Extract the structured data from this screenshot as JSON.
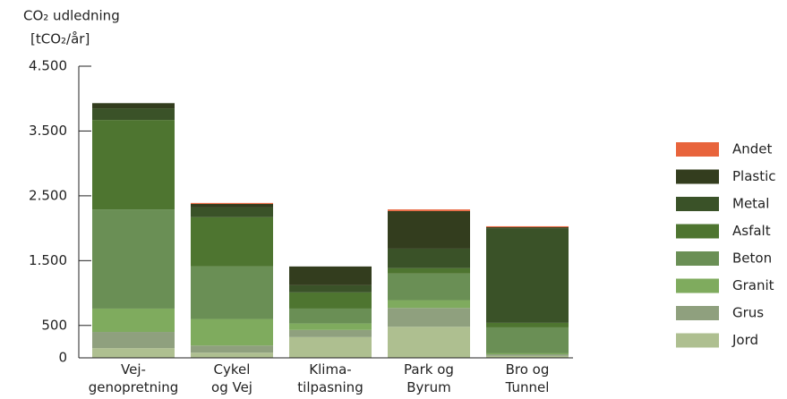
{
  "chart_data": {
    "type": "stacked_bar",
    "ylabel": [
      "CO₂ udledning",
      "[tCO₂/år]"
    ],
    "categories": [
      "Vej-\ngenopretning",
      "Cykel\nog Vej",
      "Klima-\ntilpasning",
      "Park og\nByrum",
      "Bro og\nTunnel"
    ],
    "series": [
      {
        "name": "Jord",
        "color": "#aebf90",
        "values": [
          150,
          80,
          320,
          480,
          30
        ]
      },
      {
        "name": "Grus",
        "color": "#8fa07e",
        "values": [
          250,
          110,
          110,
          290,
          25
        ]
      },
      {
        "name": "Granit",
        "color": "#7fab5e",
        "values": [
          360,
          410,
          100,
          120,
          15
        ]
      },
      {
        "name": "Beton",
        "color": "#6a8f55",
        "values": [
          1530,
          810,
          230,
          410,
          400
        ]
      },
      {
        "name": "Asfalt",
        "color": "#4e7530",
        "values": [
          1380,
          760,
          250,
          85,
          70
        ]
      },
      {
        "name": "Metal",
        "color": "#3a5228",
        "values": [
          180,
          150,
          110,
          300,
          1460
        ]
      },
      {
        "name": "Plastic",
        "color": "#333d1e",
        "values": [
          80,
          55,
          290,
          580,
          15
        ]
      },
      {
        "name": "Andet",
        "color": "#e8643c",
        "values": [
          0,
          15,
          0,
          25,
          15
        ]
      }
    ],
    "ylim": [
      0,
      4500
    ],
    "yticks": [
      0,
      500,
      {
        "value": 1500,
        "label": "1.500"
      },
      {
        "value": 2500,
        "label": "2.500"
      },
      {
        "value": 3500,
        "label": "3.500"
      },
      {
        "value": 4500,
        "label": "4.500"
      }
    ],
    "legend": "right"
  }
}
